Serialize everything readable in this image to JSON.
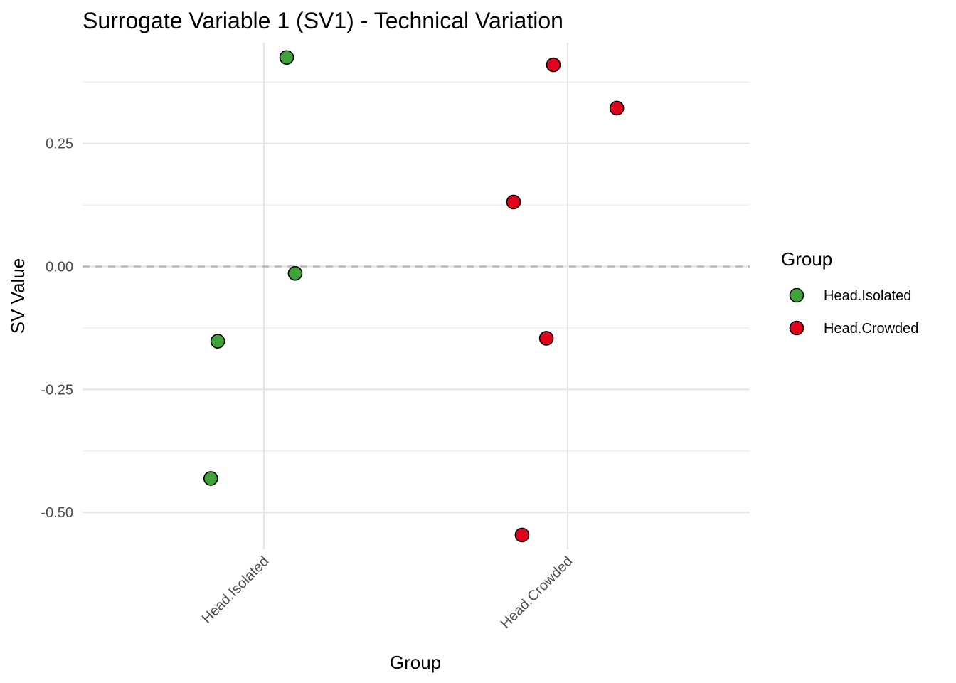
{
  "chart_data": {
    "type": "scatter",
    "title": "Surrogate Variable 1 (SV1) - Technical Variation",
    "xlabel": "Group",
    "ylabel": "SV Value",
    "categories": [
      "Head.Isolated",
      "Head.Crowded"
    ],
    "ylim": [
      -0.575,
      0.455
    ],
    "yticks": [
      0.25,
      0.0,
      -0.25,
      -0.5
    ],
    "ytick_labels": [
      "0.25",
      "0.00",
      "-0.25",
      "-0.50"
    ],
    "grid": true,
    "reference_line": {
      "y": 0.0,
      "style": "dashed",
      "color": "#b3b3b3"
    },
    "legend": {
      "title": "Group",
      "placement": "right",
      "entries": [
        {
          "label": "Head.Isolated",
          "color": "#3fa33a"
        },
        {
          "label": "Head.Crowded",
          "color": "#e0041c"
        }
      ]
    },
    "series": [
      {
        "name": "Head.Isolated",
        "color": "#3fa33a",
        "points": [
          {
            "x": "Head.Isolated",
            "jitter": 0.075,
            "y": 0.425
          },
          {
            "x": "Head.Isolated",
            "jitter": 0.103,
            "y": -0.014
          },
          {
            "x": "Head.Isolated",
            "jitter": -0.152,
            "y": -0.152
          },
          {
            "x": "Head.Isolated",
            "jitter": -0.175,
            "y": -0.431
          }
        ]
      },
      {
        "name": "Head.Crowded",
        "color": "#e0041c",
        "points": [
          {
            "x": "Head.Crowded",
            "jitter": -0.047,
            "y": 0.41
          },
          {
            "x": "Head.Crowded",
            "jitter": 0.162,
            "y": 0.322
          },
          {
            "x": "Head.Crowded",
            "jitter": -0.178,
            "y": 0.131
          },
          {
            "x": "Head.Crowded",
            "jitter": -0.07,
            "y": -0.146
          },
          {
            "x": "Head.Crowded",
            "jitter": -0.15,
            "y": -0.546
          }
        ]
      }
    ]
  }
}
